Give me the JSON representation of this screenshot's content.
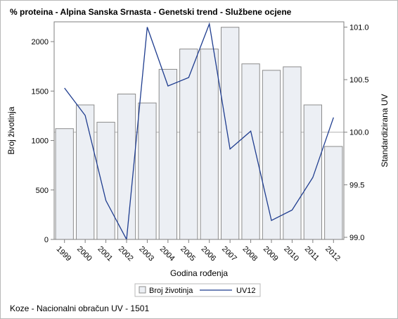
{
  "chart_data": {
    "type": "bar",
    "title": "% proteina - Alpina Sanska Srnasta - Genetski trend - Službene ocjene",
    "xlabel": "Godina rođenja",
    "ylabel": "Broj životinja",
    "y2label": "Standardizirana UV",
    "categories": [
      "1999",
      "2000",
      "2001",
      "2002",
      "2003",
      "2004",
      "2005",
      "2006",
      "2007",
      "2008",
      "2009",
      "2010",
      "2011",
      "2012"
    ],
    "ylim": [
      0,
      2200
    ],
    "y2lim": [
      98.98,
      101.05
    ],
    "yticks": [
      "0",
      "500",
      "1000",
      "1500",
      "2000"
    ],
    "y2ticks": [
      "99.0",
      "99.5",
      "100.0",
      "100.5",
      "101.0"
    ],
    "y2_reference_line": 100.0,
    "grid": false,
    "legend_position": "bottom",
    "series": [
      {
        "name": "Broj životinja",
        "type": "bar",
        "axis": "left",
        "color": "#eceff4",
        "stroke": "#8c8c8c",
        "values": [
          1120,
          1360,
          1185,
          1470,
          1380,
          1720,
          1925,
          1925,
          2145,
          1775,
          1710,
          1745,
          1360,
          940
        ]
      },
      {
        "name": "UV12",
        "type": "line",
        "axis": "right",
        "color": "#1f3d8f",
        "values": [
          100.42,
          100.16,
          99.35,
          98.98,
          101.0,
          100.44,
          100.52,
          101.03,
          99.84,
          100.01,
          99.16,
          99.26,
          99.57,
          100.14
        ]
      }
    ],
    "footnote": "Koze - Nacionalni obračun UV - 1501"
  }
}
